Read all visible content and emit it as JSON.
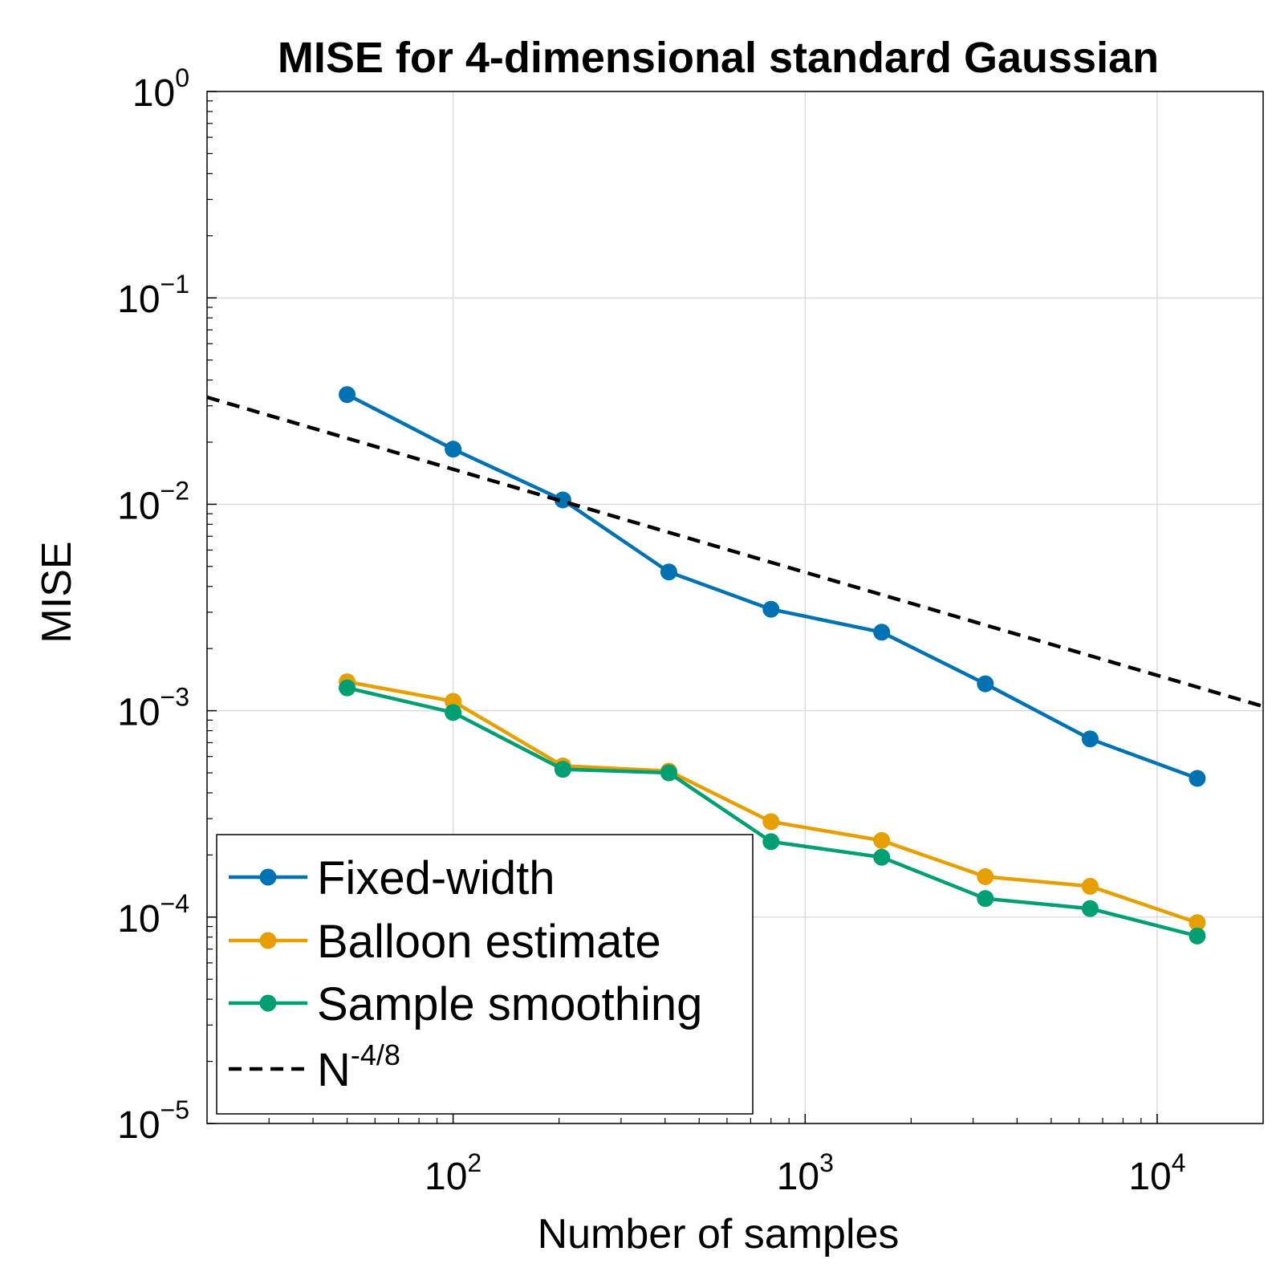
{
  "chart_data": {
    "type": "line",
    "title": "MISE for 4-dimensional standard Gaussian",
    "xlabel": "Number of samples",
    "ylabel": "MISE",
    "xscale": "log",
    "yscale": "log",
    "xlim": [
      20,
      20000
    ],
    "ylim": [
      1e-05,
      1
    ],
    "grid": true,
    "legend_position": "bottom-left",
    "x_ticks": [
      {
        "value": 100,
        "base": "10",
        "exp": "2"
      },
      {
        "value": 1000,
        "base": "10",
        "exp": "3"
      },
      {
        "value": 10000,
        "base": "10",
        "exp": "4"
      }
    ],
    "y_ticks": [
      {
        "value": 1,
        "base": "10",
        "exp": "0"
      },
      {
        "value": 0.1,
        "base": "10",
        "exp": "−1"
      },
      {
        "value": 0.01,
        "base": "10",
        "exp": "−2"
      },
      {
        "value": 0.001,
        "base": "10",
        "exp": "−3"
      },
      {
        "value": 0.0001,
        "base": "10",
        "exp": "−4"
      },
      {
        "value": 1e-05,
        "base": "10",
        "exp": "−5"
      }
    ],
    "series": [
      {
        "name": "Fixed-width",
        "color": "#0072b2",
        "style": "line+marker",
        "x": [
          50,
          100,
          205,
          410,
          800,
          1650,
          3250,
          6450,
          13000
        ],
        "y": [
          0.034,
          0.0185,
          0.0105,
          0.0047,
          0.0031,
          0.0024,
          0.00135,
          0.00073,
          0.00047
        ]
      },
      {
        "name": "Balloon estimate",
        "color": "#e69f00",
        "style": "line+marker",
        "x": [
          50,
          100,
          205,
          410,
          800,
          1650,
          3250,
          6450,
          13000
        ],
        "y": [
          0.00138,
          0.00111,
          0.00054,
          0.00051,
          0.00029,
          0.000235,
          0.000157,
          0.000141,
          9.4e-05
        ]
      },
      {
        "name": "Sample smoothing",
        "color": "#009e73",
        "style": "line+marker",
        "x": [
          50,
          100,
          205,
          410,
          800,
          1650,
          3250,
          6450,
          13000
        ],
        "y": [
          0.00129,
          0.00098,
          0.00052,
          0.0005,
          0.000232,
          0.000195,
          0.000123,
          0.00011,
          8.1e-05
        ]
      },
      {
        "name": "N",
        "name_sup": "-4/8",
        "color": "#000000",
        "style": "dashed",
        "x": [
          20,
          20000
        ],
        "y": [
          0.033,
          0.00105
        ]
      }
    ]
  }
}
